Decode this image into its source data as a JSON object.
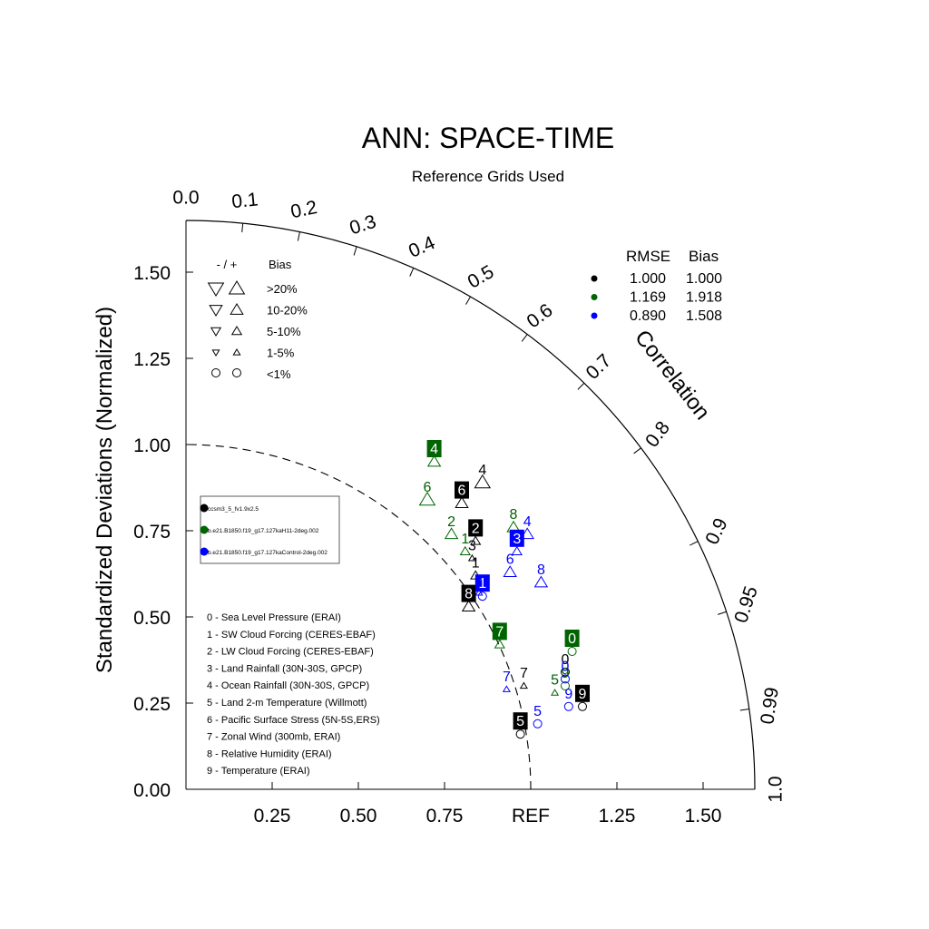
{
  "chart_data": {
    "type": "scatter",
    "subtype": "taylor-diagram",
    "title": "ANN: SPACE-TIME",
    "subtitle": "Reference Grids Used",
    "ylabel": "Standardized Deviations (Normalized)",
    "arc_label": "Correlation",
    "ref_label": "REF",
    "xlim": [
      0,
      1.65
    ],
    "ylim": [
      0,
      1.65
    ],
    "x_ticks": [
      "0.25",
      "0.50",
      "0.75",
      "REF",
      "1.25",
      "1.50"
    ],
    "x_tick_values": [
      0.25,
      0.5,
      0.75,
      1.0,
      1.25,
      1.5
    ],
    "y_ticks": [
      "0.00",
      "0.25",
      "0.50",
      "0.75",
      "1.00",
      "1.25",
      "1.50"
    ],
    "y_tick_values": [
      0,
      0.25,
      0.5,
      0.75,
      1.0,
      1.25,
      1.5
    ],
    "corr_ticks": [
      "0.0",
      "0.1",
      "0.2",
      "0.3",
      "0.4",
      "0.5",
      "0.6",
      "0.7",
      "0.8",
      "0.9",
      "0.95",
      "0.99",
      "1.0"
    ],
    "corr_tick_values": [
      0.0,
      0.1,
      0.2,
      0.3,
      0.4,
      0.5,
      0.6,
      0.7,
      0.8,
      0.9,
      0.95,
      0.99,
      1.0
    ],
    "reference_arc_radius": 1.0,
    "series": [
      {
        "name": "ccsm3_5_fv1.9x2.5",
        "color": "#000000",
        "rmse": "1.000",
        "bias": "1.000",
        "points": [
          {
            "id": "0",
            "x": 1.1,
            "y": 0.34,
            "label_box": false,
            "marker": "circle",
            "filled": false
          },
          {
            "id": "1",
            "x": 0.84,
            "y": 0.62,
            "label_box": false,
            "marker": "triangle-up-sm",
            "filled": false
          },
          {
            "id": "2",
            "x": 0.84,
            "y": 0.72,
            "label_box": true,
            "marker": "triangle-up-sm",
            "filled": false
          },
          {
            "id": "3",
            "x": 0.83,
            "y": 0.67,
            "label_box": false,
            "marker": "triangle-up-xs",
            "filled": false
          },
          {
            "id": "4",
            "x": 0.86,
            "y": 0.89,
            "label_box": false,
            "marker": "triangle-up-lg",
            "filled": false
          },
          {
            "id": "5",
            "x": 0.97,
            "y": 0.16,
            "label_box": true,
            "marker": "circle",
            "filled": false
          },
          {
            "id": "6",
            "x": 0.8,
            "y": 0.83,
            "label_box": true,
            "marker": "triangle-up",
            "filled": false
          },
          {
            "id": "7",
            "x": 0.98,
            "y": 0.3,
            "label_box": false,
            "marker": "triangle-up-xs",
            "filled": false
          },
          {
            "id": "8",
            "x": 0.82,
            "y": 0.53,
            "label_box": true,
            "marker": "triangle-up",
            "filled": false
          },
          {
            "id": "9",
            "x": 1.15,
            "y": 0.24,
            "label_box": true,
            "marker": "circle",
            "filled": false
          }
        ]
      },
      {
        "name": "b.e21.B1850.f19_g17.127kaH11-2deg.002",
        "color": "#006400",
        "rmse": "1.169",
        "bias": "1.918",
        "points": [
          {
            "id": "0",
            "x": 1.12,
            "y": 0.4,
            "label_box": true,
            "marker": "circle",
            "filled": false
          },
          {
            "id": "1",
            "x": 0.81,
            "y": 0.69,
            "label_box": false,
            "marker": "triangle-up-sm",
            "filled": false
          },
          {
            "id": "2",
            "x": 0.77,
            "y": 0.74,
            "label_box": false,
            "marker": "triangle-up",
            "filled": false
          },
          {
            "id": "4",
            "x": 0.72,
            "y": 0.95,
            "label_box": true,
            "marker": "triangle-up",
            "filled": false
          },
          {
            "id": "5",
            "x": 1.07,
            "y": 0.28,
            "label_box": false,
            "marker": "triangle-up-xs",
            "filled": false
          },
          {
            "id": "6",
            "x": 0.7,
            "y": 0.84,
            "label_box": false,
            "marker": "triangle-up-lg",
            "filled": false
          },
          {
            "id": "7",
            "x": 0.91,
            "y": 0.42,
            "label_box": true,
            "marker": "triangle-up-sm",
            "filled": false
          },
          {
            "id": "8",
            "x": 0.95,
            "y": 0.76,
            "label_box": false,
            "marker": "triangle-up",
            "filled": false
          },
          {
            "id": "9",
            "x": 1.1,
            "y": 0.3,
            "label_box": false,
            "marker": "circle",
            "filled": false
          }
        ]
      },
      {
        "name": "b.e21.B1850.f19_g17.127kaControl-2deg.002",
        "color": "#0000ff",
        "rmse": "0.890",
        "bias": "1.508",
        "points": [
          {
            "id": "0",
            "x": 1.1,
            "y": 0.32,
            "label_box": false,
            "marker": "circle",
            "filled": false
          },
          {
            "id": "1",
            "x": 0.86,
            "y": 0.56,
            "label_box": true,
            "marker": "circle",
            "filled": false
          },
          {
            "id": "2",
            "x": 0.85,
            "y": 0.57,
            "label_box": false,
            "marker": "triangle-up-xs",
            "filled": false
          },
          {
            "id": "3",
            "x": 0.96,
            "y": 0.69,
            "label_box": true,
            "marker": "triangle-up-sm",
            "filled": false
          },
          {
            "id": "4",
            "x": 0.99,
            "y": 0.74,
            "label_box": false,
            "marker": "triangle-up",
            "filled": false
          },
          {
            "id": "5",
            "x": 1.02,
            "y": 0.19,
            "label_box": false,
            "marker": "circle",
            "filled": false
          },
          {
            "id": "6",
            "x": 0.94,
            "y": 0.63,
            "label_box": false,
            "marker": "triangle-up",
            "filled": false
          },
          {
            "id": "7",
            "x": 0.93,
            "y": 0.29,
            "label_box": false,
            "marker": "triangle-up-xs",
            "filled": false
          },
          {
            "id": "8",
            "x": 1.03,
            "y": 0.6,
            "label_box": false,
            "marker": "triangle-up",
            "filled": false
          },
          {
            "id": "9",
            "x": 1.11,
            "y": 0.24,
            "label_box": false,
            "marker": "circle",
            "filled": false
          }
        ]
      }
    ],
    "bias_legend": {
      "header_sign": "- / +",
      "header_bias": "Bias",
      "rows": [
        {
          "label": ">20%",
          "size": "lg",
          "shape": "triangle"
        },
        {
          "label": "10-20%",
          "size": "md",
          "shape": "triangle"
        },
        {
          "label": "5-10%",
          "size": "sm",
          "shape": "triangle"
        },
        {
          "label": "1-5%",
          "size": "xs",
          "shape": "triangle"
        },
        {
          "label": "<1%",
          "size": "md",
          "shape": "circle"
        }
      ]
    },
    "stats_legend": {
      "header_rmse": "RMSE",
      "header_bias": "Bias"
    },
    "variables": [
      "0 - Sea Level Pressure (ERAI)",
      "1 - SW Cloud Forcing (CERES-EBAF)",
      "2 - LW Cloud Forcing (CERES-EBAF)",
      "3 - Land Rainfall (30N-30S, GPCP)",
      "4 - Ocean Rainfall (30N-30S, GPCP)",
      "5 - Land 2-m Temperature (Willmott)",
      "6 - Pacific Surface Stress (5N-5S,ERS)",
      "7 - Zonal Wind (300mb, ERAI)",
      "8 - Relative Humidity (ERAI)",
      "9 - Temperature (ERAI)"
    ]
  }
}
